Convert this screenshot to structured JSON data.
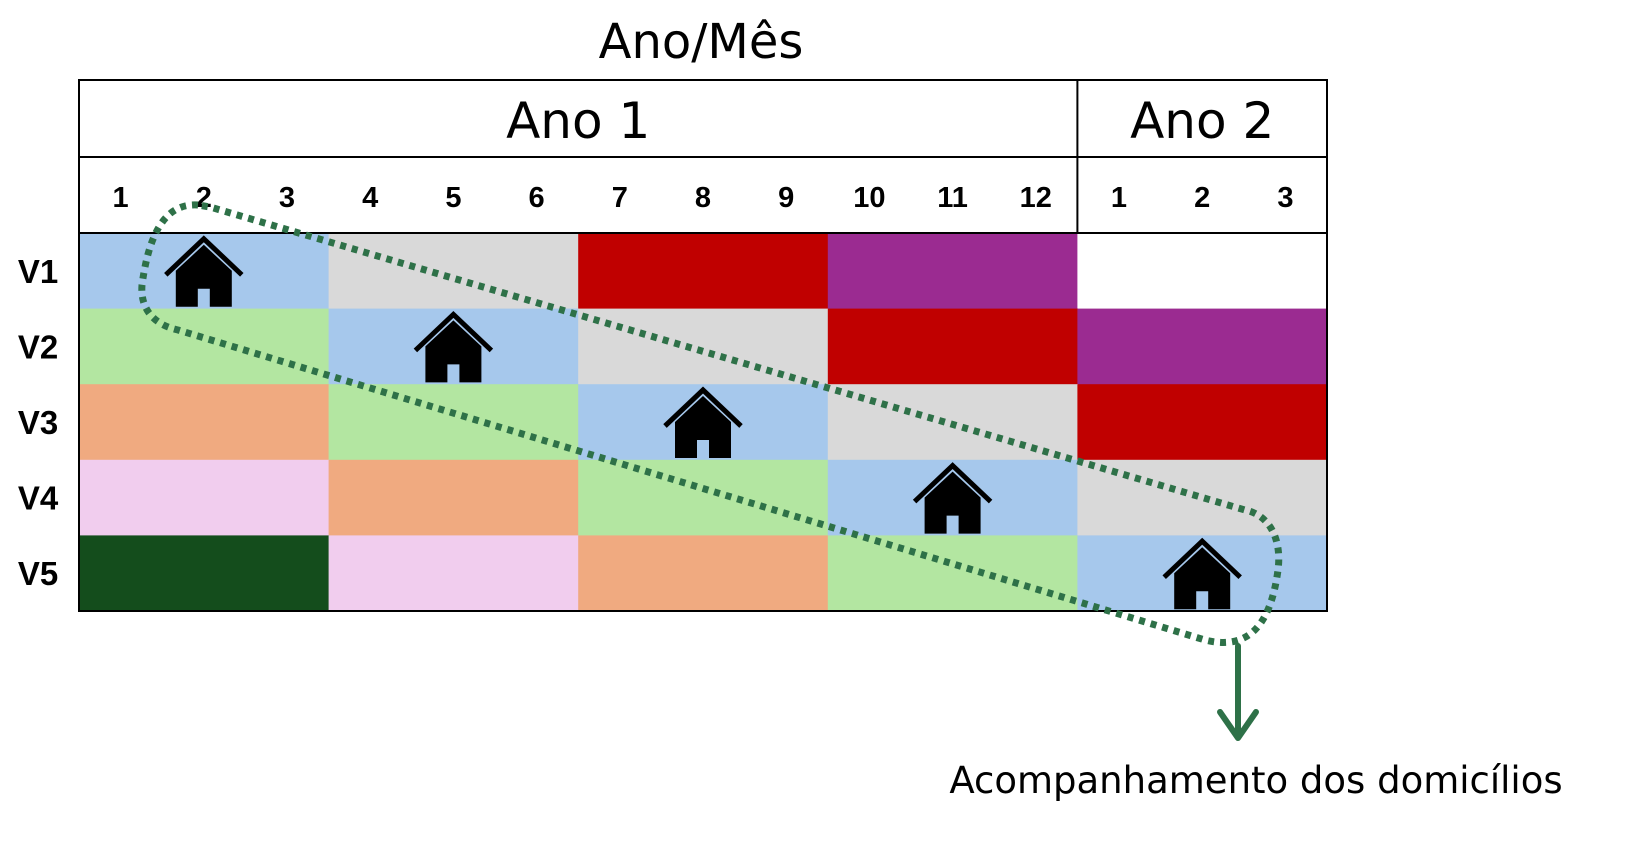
{
  "title": "Ano/Mês",
  "years": [
    {
      "label": "Ano 1",
      "months": 12
    },
    {
      "label": "Ano 2",
      "months": 3
    }
  ],
  "months": [
    "1",
    "2",
    "3",
    "4",
    "5",
    "6",
    "7",
    "8",
    "9",
    "10",
    "11",
    "12",
    "1",
    "2",
    "3"
  ],
  "palette": {
    "blue": "#a6c8ec",
    "grey": "#d9d9d9",
    "red": "#c00000",
    "purple": "#9b2b91",
    "green": "#b3e6a1",
    "orange": "#f0aa80",
    "pink": "#f1cdee",
    "darkgreen": "#144d1c",
    "white": "#ffffff"
  },
  "rows": [
    {
      "label": "V1",
      "blocks": [
        "blue",
        "grey",
        "red",
        "purple",
        "white"
      ],
      "house_block": 0
    },
    {
      "label": "V2",
      "blocks": [
        "green",
        "blue",
        "grey",
        "red",
        "purple"
      ],
      "house_block": 1
    },
    {
      "label": "V3",
      "blocks": [
        "orange",
        "green",
        "blue",
        "grey",
        "red"
      ],
      "house_block": 2
    },
    {
      "label": "V4",
      "blocks": [
        "pink",
        "orange",
        "green",
        "blue",
        "grey"
      ],
      "house_block": 3
    },
    {
      "label": "V5",
      "blocks": [
        "darkgreen",
        "pink",
        "orange",
        "green",
        "blue"
      ],
      "house_block": 4
    }
  ],
  "annotation": {
    "label": "Acompanhamento dos domicílios",
    "color": "#2e7148",
    "icon": "house-icon"
  }
}
